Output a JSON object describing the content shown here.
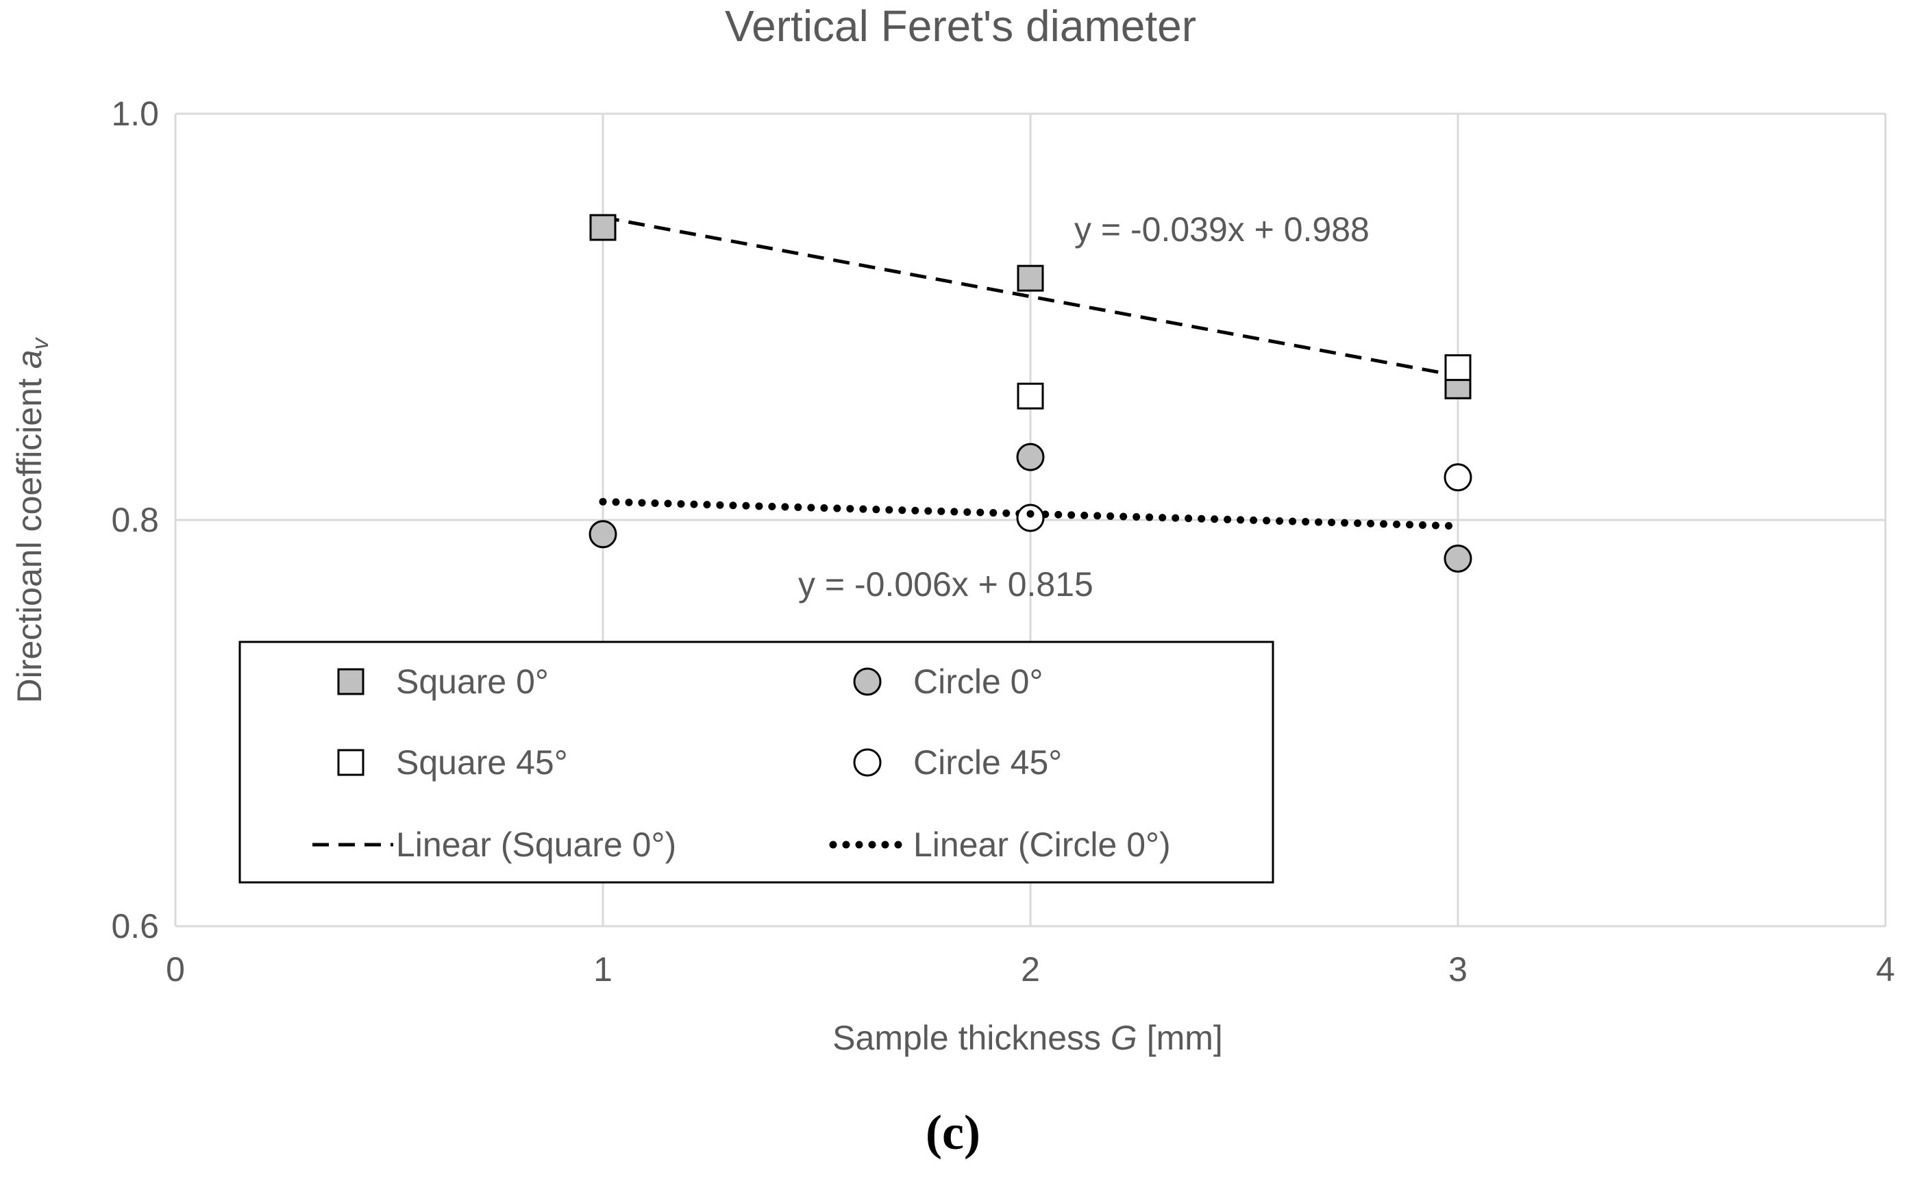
{
  "chart_data": {
    "type": "scatter",
    "title": "Vertical Feret's diameter",
    "xlabel": {
      "prefix": "Sample thickness ",
      "italic": "G",
      "suffix": " [mm]"
    },
    "ylabel": {
      "prefix": "Directioanl coefficient ",
      "italic": "a",
      "subscript": "v"
    },
    "xlim": [
      0,
      4
    ],
    "ylim": [
      0.6,
      1.0
    ],
    "x_ticks": [
      0,
      1,
      2,
      3,
      4
    ],
    "x_tick_labels": [
      "0",
      "1",
      "2",
      "3",
      "4"
    ],
    "y_ticks": [
      0.6,
      0.8,
      1.0
    ],
    "y_tick_labels": [
      "0.6",
      "0.8",
      "1.0"
    ],
    "grid": true,
    "legend_position": "bottom-left",
    "series": [
      {
        "name": "Square 0°",
        "marker": "square",
        "fill": "#c0c0c0",
        "x": [
          1,
          2,
          3
        ],
        "y": [
          0.944,
          0.919,
          0.866
        ]
      },
      {
        "name": "Square 45°",
        "marker": "square",
        "fill": "#ffffff",
        "x": [
          2,
          3
        ],
        "y": [
          0.861,
          0.875
        ]
      },
      {
        "name": "Circle 0°",
        "marker": "circle",
        "fill": "#c0c0c0",
        "x": [
          1,
          2,
          3
        ],
        "y": [
          0.793,
          0.831,
          0.781
        ]
      },
      {
        "name": "Circle 45°",
        "marker": "circle",
        "fill": "#ffffff",
        "x": [
          2,
          3
        ],
        "y": [
          0.801,
          0.821
        ]
      }
    ],
    "trendlines": [
      {
        "name": "Linear (Square 0°)",
        "style": "dashed",
        "slope": -0.039,
        "intercept": 0.988,
        "x_range": [
          1,
          3
        ],
        "equation": "y = -0.039x + 0.988"
      },
      {
        "name": "Linear (Circle 0°)",
        "style": "dotted",
        "slope": -0.006,
        "intercept": 0.815,
        "x_range": [
          1,
          3
        ],
        "equation": "y = -0.006x + 0.815"
      }
    ],
    "legend": [
      {
        "label": "Square 0°",
        "kind": "square",
        "fill": "#c0c0c0"
      },
      {
        "label": "Circle 0°",
        "kind": "circle",
        "fill": "#c0c0c0"
      },
      {
        "label": "Square 45°",
        "kind": "square",
        "fill": "#ffffff"
      },
      {
        "label": "Circle 45°",
        "kind": "circle",
        "fill": "#ffffff"
      },
      {
        "label": "Linear (Square 0°)",
        "kind": "dashed"
      },
      {
        "label": "Linear (Circle 0°)",
        "kind": "dotted"
      }
    ]
  },
  "panel_label": "(c)",
  "colors": {
    "grid": "#d9d9d9",
    "text": "#595959",
    "marker_stroke": "#000000",
    "trend": "#000000"
  }
}
